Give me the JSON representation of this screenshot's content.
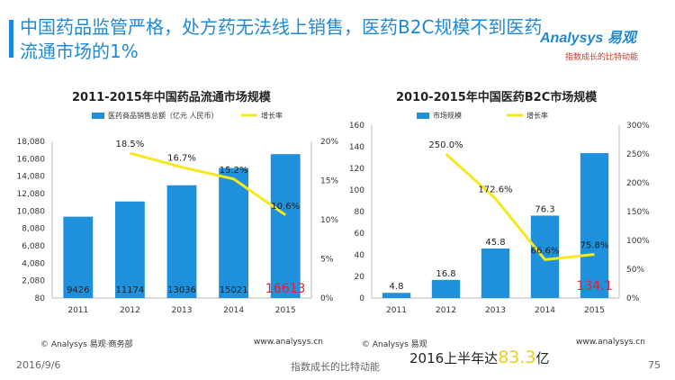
{
  "page": {
    "headline": "中国药品监管严格，处方药无法线上销售，医药B2C规模不到医药流通市场的1%",
    "logo_main": "Analysys 易观",
    "logo_sub": "指数成长的比特动能",
    "footer_date": "2016/9/6",
    "footer_tagline": "指数成长的比特动能",
    "page_number": "75",
    "note_prefix": "2016上半年达",
    "note_value": "83.3",
    "note_suffix": "亿",
    "colors": {
      "accent": "#1E88D6",
      "bar": "#1E90DC",
      "line": "#F7E81C",
      "highlight": "#E8202A"
    }
  },
  "chart_data": [
    {
      "type": "bar",
      "title": "2011-2015年中国药品流通市场规模",
      "categories": [
        "2011",
        "2012",
        "2013",
        "2014",
        "2015"
      ],
      "series": [
        {
          "name": "医药商品销售总额（亿元 人民币）",
          "type": "bar",
          "values": [
            9426,
            11174,
            13036,
            15021,
            16613
          ],
          "labels": [
            "9426",
            "11174",
            "13036",
            "15021",
            "16613"
          ]
        },
        {
          "name": "增长率",
          "type": "line",
          "values": [
            null,
            18.5,
            16.7,
            15.2,
            10.6
          ],
          "labels": [
            "",
            "18.5%",
            "16.7%",
            "15.2%",
            "10.6%"
          ]
        }
      ],
      "y_left": {
        "min": 80,
        "max": 18080,
        "ticks": [
          "80",
          "2,080",
          "4,080",
          "6,080",
          "8,080",
          "10,080",
          "12,080",
          "14,080",
          "16,080",
          "18,080"
        ]
      },
      "y_right": {
        "min": 0,
        "max": 20,
        "ticks": [
          "0%",
          "5%",
          "10%",
          "15%",
          "20%"
        ]
      },
      "highlight_index": 4,
      "source": "© Analysys 易观·商务部",
      "url": "www.analysys.cn"
    },
    {
      "type": "bar",
      "title": "2010-2015年中国医药B2C市场规模",
      "categories": [
        "2011",
        "2012",
        "2013",
        "2014",
        "2015"
      ],
      "series": [
        {
          "name": "市场规模",
          "type": "bar",
          "values": [
            4.8,
            16.8,
            45.8,
            76.3,
            134.1
          ],
          "labels": [
            "4.8",
            "16.8",
            "45.8",
            "76.3",
            "134.1"
          ]
        },
        {
          "name": "增长率",
          "type": "line",
          "values": [
            null,
            250.0,
            172.6,
            66.6,
            75.8
          ],
          "labels": [
            "",
            "250.0%",
            "172.6%",
            "66.6%",
            "75.8%"
          ]
        }
      ],
      "y_left": {
        "min": 0,
        "max": 160,
        "ticks": [
          "0",
          "20",
          "40",
          "60",
          "80",
          "100",
          "120",
          "140",
          "160"
        ]
      },
      "y_right": {
        "min": 0,
        "max": 300,
        "ticks": [
          "0%",
          "50%",
          "100%",
          "150%",
          "200%",
          "250%",
          "300%"
        ]
      },
      "highlight_index": 4,
      "source": "© Analysys 易观",
      "url": "www.analysys.cn"
    }
  ]
}
